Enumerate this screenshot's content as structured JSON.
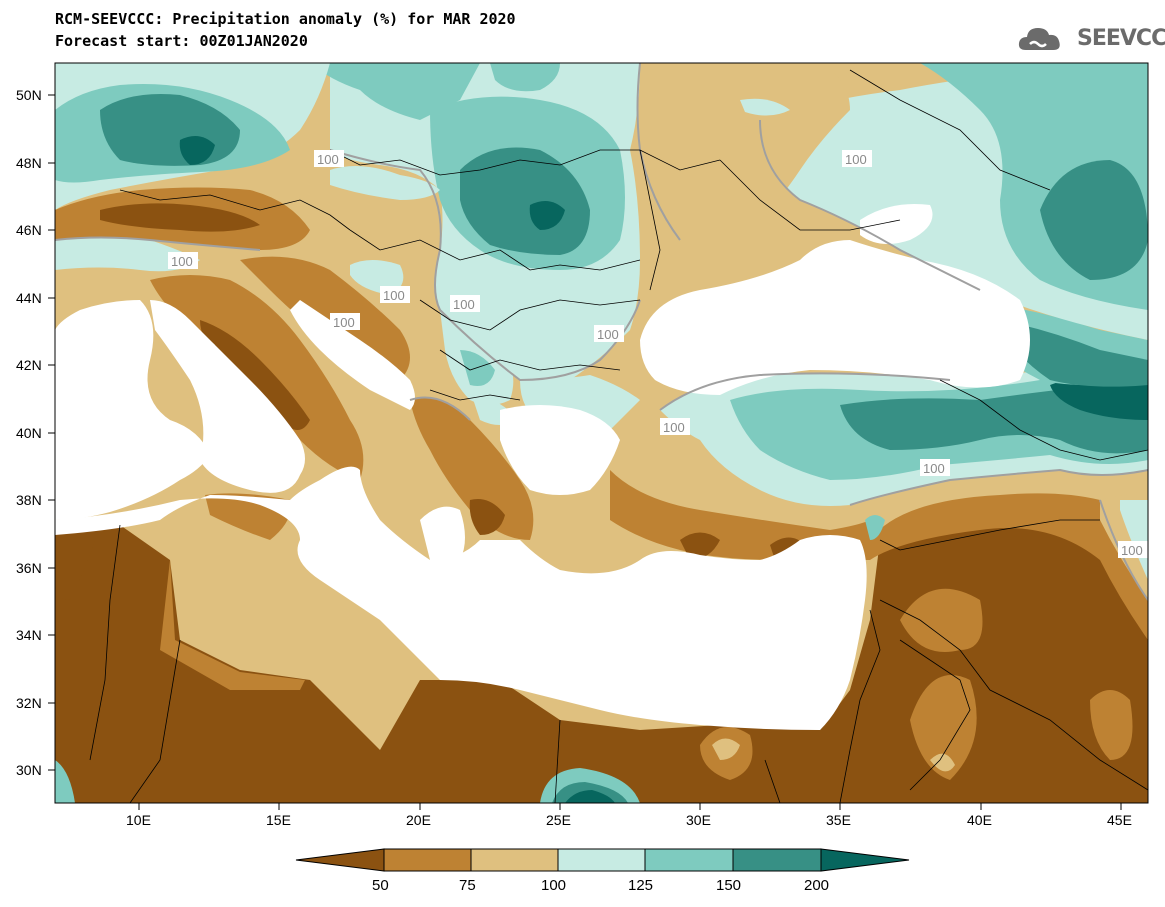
{
  "header": {
    "title_line1": "RCM-SEEVCCC: Precipitation anomaly (%) for MAR 2020",
    "title_line2": "Forecast start: 00Z01JAN2020"
  },
  "logo": {
    "text": "SEEVCCC",
    "icon": "cloud-icon"
  },
  "map": {
    "lon_range": [
      7,
      46
    ],
    "lat_range": [
      29,
      51
    ],
    "lat_ticks": [
      "50N",
      "48N",
      "46N",
      "44N",
      "42N",
      "40N",
      "38N",
      "36N",
      "34N",
      "32N",
      "30N"
    ],
    "lon_ticks": [
      "10E",
      "15E",
      "20E",
      "25E",
      "30E",
      "35E",
      "40E",
      "45E"
    ],
    "contour_labels": [
      "100",
      "100",
      "100",
      "100",
      "100",
      "100",
      "100",
      "100",
      "100",
      "100"
    ]
  },
  "colorbar": {
    "labels": [
      "50",
      "75",
      "100",
      "125",
      "150",
      "200"
    ],
    "colors": [
      "#8b5211",
      "#be8233",
      "#dfc07f",
      "#c7ebe3",
      "#7ecbbf",
      "#379085",
      "#07665e"
    ]
  }
}
